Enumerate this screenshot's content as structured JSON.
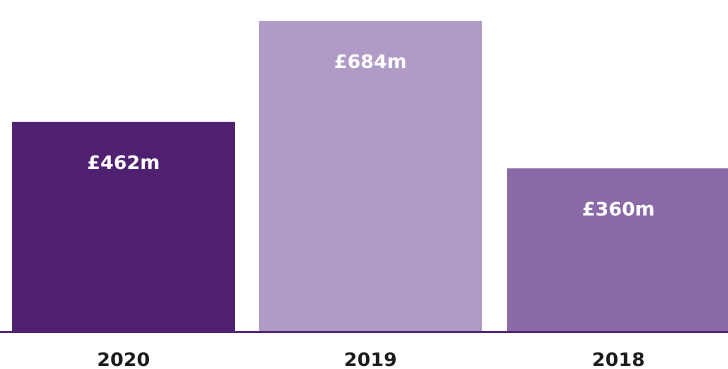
{
  "chart_data": {
    "type": "bar",
    "categories": [
      "2020",
      "2019",
      "2018"
    ],
    "values": [
      462,
      684,
      360
    ],
    "data_labels": [
      "£462m",
      "£684m",
      "£360m"
    ],
    "colors": [
      "#4f1f70",
      "#b09ac6",
      "#8a6aa6"
    ],
    "axis_color": "#4f1f70",
    "ylim": [
      0,
      730
    ],
    "title": "",
    "xlabel": "",
    "ylabel": "",
    "grid": false,
    "legend": "none"
  }
}
